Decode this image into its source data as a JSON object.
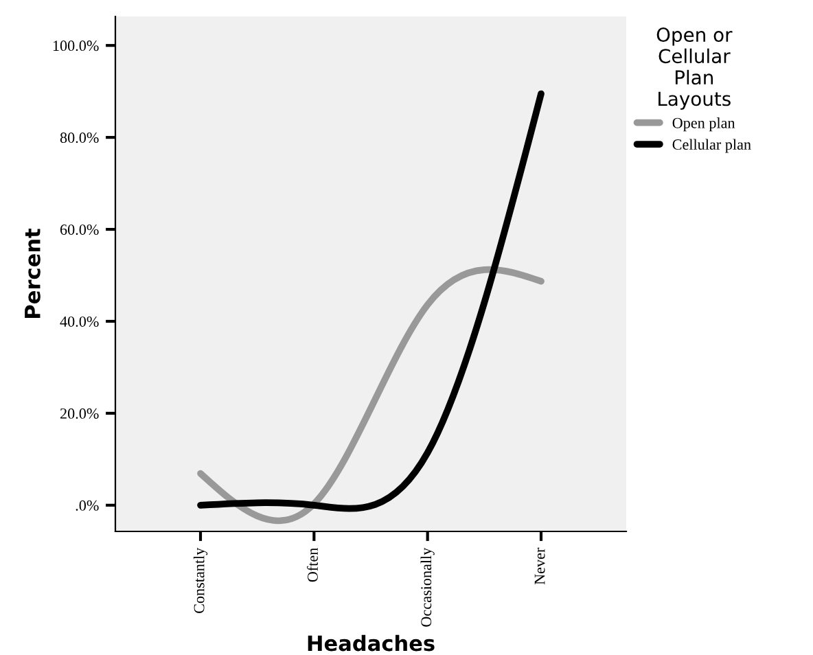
{
  "chart_data": {
    "type": "line",
    "xlabel": "Headaches",
    "ylabel": "Percent",
    "legend_title": "Open or\nCellular\nPlan\nLayouts",
    "legend": "top right",
    "grid": false,
    "categories": [
      "Constantly",
      "Often",
      "Occasionally",
      "Never"
    ],
    "series": [
      {
        "name": "Open plan",
        "color": "#999999",
        "values": [
          6.9,
          0.3,
          43.6,
          48.7
        ]
      },
      {
        "name": "Cellular plan",
        "color": "#000000",
        "values": [
          0,
          0,
          11.4,
          89.5
        ]
      }
    ],
    "ylim": [
      -5.7,
      106.3
    ],
    "yticks": [
      {
        "value": 0,
        "label": ".0%"
      },
      {
        "value": 20,
        "label": "20.0%"
      },
      {
        "value": 40,
        "label": "40.0%"
      },
      {
        "value": 60,
        "label": "60.0%"
      },
      {
        "value": 80,
        "label": "80.0%"
      },
      {
        "value": 100,
        "label": "100.0%"
      }
    ]
  }
}
